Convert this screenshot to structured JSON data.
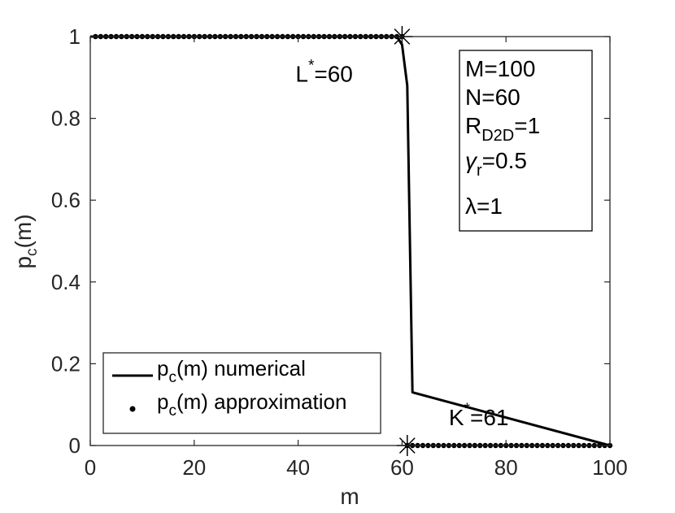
{
  "chart_data": {
    "type": "line",
    "title": "",
    "xlabel": "m",
    "ylabel_main": "p",
    "ylabel_sub": "c",
    "ylabel_tail": "(m)",
    "xlim": [
      0,
      100
    ],
    "ylim": [
      0,
      1
    ],
    "xticks": [
      0,
      20,
      40,
      60,
      80,
      100
    ],
    "yticks": [
      0,
      0.2,
      0.4,
      0.6,
      0.8,
      1
    ],
    "grid": false,
    "legend_position": "bottom-left",
    "series": [
      {
        "name_main": "p",
        "name_sub": "c",
        "name_tail": "(m) numerical",
        "style": "solid-line",
        "x": [
          0,
          58,
          59,
          60,
          61,
          62,
          100
        ],
        "y": [
          1,
          1,
          1,
          0.98,
          0.88,
          0.13,
          0
        ]
      },
      {
        "name_main": "p",
        "name_sub": "c",
        "name_tail": "(m) approximation",
        "style": "dots",
        "x": [
          1,
          2,
          3,
          4,
          5,
          6,
          7,
          8,
          9,
          10,
          11,
          12,
          13,
          14,
          15,
          16,
          17,
          18,
          19,
          20,
          21,
          22,
          23,
          24,
          25,
          26,
          27,
          28,
          29,
          30,
          31,
          32,
          33,
          34,
          35,
          36,
          37,
          38,
          39,
          40,
          41,
          42,
          43,
          44,
          45,
          46,
          47,
          48,
          49,
          50,
          51,
          52,
          53,
          54,
          55,
          56,
          57,
          58,
          59,
          60,
          61,
          62,
          63,
          64,
          65,
          66,
          67,
          68,
          69,
          70,
          71,
          72,
          73,
          74,
          75,
          76,
          77,
          78,
          79,
          80,
          81,
          82,
          83,
          84,
          85,
          86,
          87,
          88,
          89,
          90,
          91,
          92,
          93,
          94,
          95,
          96,
          97,
          98,
          99,
          100
        ],
        "y": [
          1,
          1,
          1,
          1,
          1,
          1,
          1,
          1,
          1,
          1,
          1,
          1,
          1,
          1,
          1,
          1,
          1,
          1,
          1,
          1,
          1,
          1,
          1,
          1,
          1,
          1,
          1,
          1,
          1,
          1,
          1,
          1,
          1,
          1,
          1,
          1,
          1,
          1,
          1,
          1,
          1,
          1,
          1,
          1,
          1,
          1,
          1,
          1,
          1,
          1,
          1,
          1,
          1,
          1,
          1,
          1,
          1,
          1,
          1,
          1,
          0,
          0,
          0,
          0,
          0,
          0,
          0,
          0,
          0,
          0,
          0,
          0,
          0,
          0,
          0,
          0,
          0,
          0,
          0,
          0,
          0,
          0,
          0,
          0,
          0,
          0,
          0,
          0,
          0,
          0,
          0,
          0,
          0,
          0,
          0,
          0,
          0,
          0,
          0,
          0
        ]
      }
    ],
    "markers": [
      {
        "name": "L-star-marker",
        "x": 60,
        "y": 1
      },
      {
        "name": "K-star-marker",
        "x": 61,
        "y": 0
      }
    ],
    "annotations": {
      "l_star": {
        "base": "L",
        "sup": "*",
        "tail": "=60",
        "x": 39.5,
        "y": 0.89
      },
      "k_star": {
        "base": "K",
        "sup": "*",
        "tail": "=61",
        "x": 69,
        "y": 0.05
      }
    },
    "params_box": {
      "m_line": "M=100",
      "n_line": "N=60",
      "r_main": "R",
      "r_sub": "D2D",
      "r_tail": "=1",
      "gamma_main": "γ",
      "gamma_sub": "r",
      "gamma_tail": "=0.5",
      "lambda_line": "λ=1"
    }
  }
}
